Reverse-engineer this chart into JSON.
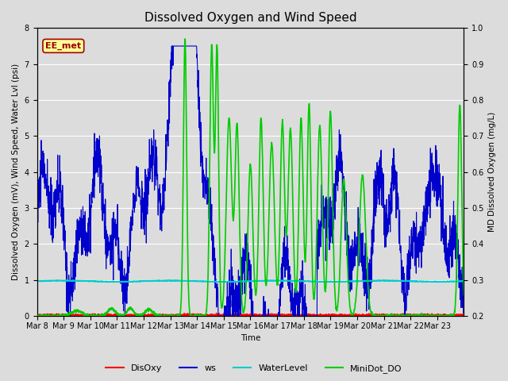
{
  "title": "Dissolved Oxygen and Wind Speed",
  "xlabel": "Time",
  "ylabel_left": "Dissolved Oxygen (mV), Wind Speed, Water Lvl (psi)",
  "ylabel_right": "MD Dissolved Oxygen (mg/L)",
  "ylim_left": [
    0.0,
    8.0
  ],
  "ylim_right": [
    0.2,
    1.0
  ],
  "yticks_left": [
    0.0,
    1.0,
    2.0,
    3.0,
    4.0,
    5.0,
    6.0,
    7.0,
    8.0
  ],
  "yticks_right": [
    0.2,
    0.3,
    0.4,
    0.5,
    0.6,
    0.7,
    0.8,
    0.9,
    1.0
  ],
  "xtick_labels": [
    "Mar 8",
    "Mar 9",
    "Mar 10",
    "Mar 11",
    "Mar 12",
    "Mar 13",
    "Mar 14",
    "Mar 15",
    "Mar 16",
    "Mar 17",
    "Mar 18",
    "Mar 19",
    "Mar 20",
    "Mar 21",
    "Mar 22",
    "Mar 23"
  ],
  "n_days": 16,
  "colors": {
    "DisOxy": "#ff0000",
    "ws": "#0000cc",
    "WaterLevel": "#00cccc",
    "MiniDot_DO": "#00cc00"
  },
  "linewidths": {
    "DisOxy": 1.0,
    "ws": 0.8,
    "WaterLevel": 1.2,
    "MiniDot_DO": 1.2
  },
  "annotation_text": "EE_met",
  "annotation_color": "#990000",
  "annotation_bg": "#ffff99",
  "annotation_border": "#aa0000",
  "background_color": "#dcdcdc",
  "title_fontsize": 11,
  "label_fontsize": 7.5,
  "tick_fontsize": 7
}
